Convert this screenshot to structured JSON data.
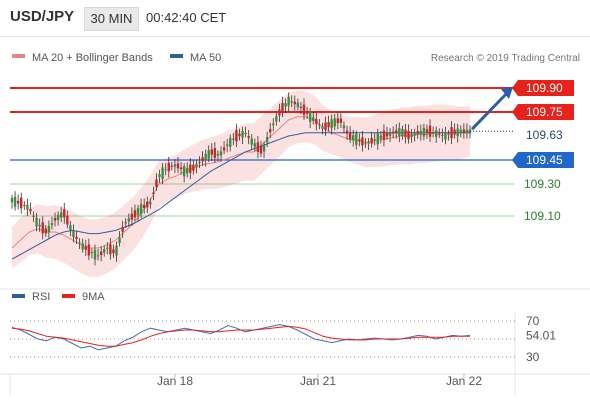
{
  "header": {
    "symbol": "USD/JPY",
    "timeframe": "30 MIN",
    "time": "00:42:40 CET"
  },
  "chart_data": [
    {
      "type": "line",
      "title": "",
      "credit": "Research © 2019 Trading Central",
      "legend": [
        {
          "name": "MA 20 + Bollinger Bands",
          "color": "#f08080"
        },
        {
          "name": "MA 50",
          "color": "#2e5fa3"
        }
      ],
      "legend_placement": "top-left",
      "x_tick_labels": [
        "Jan 18",
        "Jan 21",
        "Jan 22"
      ],
      "ylim": [
        108.7,
        110.05
      ],
      "resistance_levels": [
        {
          "label": "109.90",
          "value": 109.9,
          "color": "#e8211b",
          "style": "box"
        },
        {
          "label": "109.75",
          "value": 109.75,
          "color": "#e8211b",
          "style": "box"
        },
        {
          "label": "109.45",
          "value": 109.45,
          "color": "#2166c9",
          "style": "box"
        }
      ],
      "support_levels": [
        {
          "label": "109.30",
          "value": 109.3,
          "color": "#2e9e3a",
          "style": "text"
        },
        {
          "label": "109.10",
          "value": 109.1,
          "color": "#2e9e3a",
          "style": "text"
        }
      ],
      "last_price": {
        "label": "109.63",
        "value": 109.63
      },
      "series": [
        {
          "name": "Price",
          "values": [
            109.2,
            109.18,
            109.15,
            109.05,
            109.0,
            109.08,
            109.12,
            109.0,
            108.92,
            108.88,
            108.85,
            108.9,
            108.87,
            109.05,
            109.1,
            109.15,
            109.18,
            109.35,
            109.4,
            109.42,
            109.38,
            109.4,
            109.45,
            109.5,
            109.48,
            109.55,
            109.6,
            109.62,
            109.55,
            109.5,
            109.65,
            109.75,
            109.82,
            109.8,
            109.75,
            109.7,
            109.65,
            109.68,
            109.7,
            109.6,
            109.58,
            109.55,
            109.58,
            109.6,
            109.62,
            109.63,
            109.6,
            109.62,
            109.63,
            109.62,
            109.6,
            109.62,
            109.63,
            109.63
          ]
        },
        {
          "name": "MA 20",
          "values": [
            108.9,
            108.95,
            109.0,
            109.02,
            109.0,
            109.0,
            108.98,
            108.95,
            108.92,
            108.9,
            108.9,
            108.92,
            108.95,
            109.0,
            109.05,
            109.12,
            109.2,
            109.3,
            109.33,
            109.35,
            109.38,
            109.4,
            109.42,
            109.43,
            109.44,
            109.46,
            109.48,
            109.5,
            109.5,
            109.55,
            109.6,
            109.65,
            109.7,
            109.72,
            109.72,
            109.7,
            109.65,
            109.62,
            109.6,
            109.58,
            109.57,
            109.56,
            109.57,
            109.58,
            109.59,
            109.6,
            109.6,
            109.61,
            109.61,
            109.62,
            109.62,
            109.62,
            109.62,
            109.63
          ]
        },
        {
          "name": "MA 50",
          "values": [
            108.83,
            108.86,
            108.89,
            108.92,
            108.95,
            108.98,
            109.0,
            109.01,
            109.0,
            108.99,
            108.99,
            109.0,
            109.01,
            109.03,
            109.05,
            109.08,
            109.11,
            109.14,
            109.18,
            109.22,
            109.26,
            109.3,
            109.34,
            109.38,
            109.41,
            109.44,
            109.47,
            109.5,
            109.52,
            109.54,
            109.56,
            109.58,
            109.6,
            109.61,
            109.62,
            109.62,
            109.62,
            109.62,
            109.62,
            109.62,
            109.62,
            109.62,
            109.62,
            109.62,
            109.62,
            109.62,
            109.62,
            109.62,
            109.62,
            109.62,
            109.62,
            109.62,
            109.62,
            109.62
          ]
        }
      ]
    },
    {
      "type": "line",
      "title": "",
      "legend": [
        {
          "name": "RSI",
          "color": "#2e5fa3"
        },
        {
          "name": "9MA",
          "color": "#e8211b"
        }
      ],
      "ylim": [
        20,
        80
      ],
      "y_tick_labels": [
        "70",
        "30"
      ],
      "current_value": {
        "label": "54.01",
        "value": 54.01
      },
      "series": [
        {
          "name": "RSI",
          "values": [
            63,
            60,
            55,
            50,
            48,
            52,
            50,
            45,
            40,
            42,
            38,
            40,
            42,
            48,
            52,
            58,
            62,
            60,
            58,
            60,
            62,
            60,
            58,
            56,
            60,
            65,
            62,
            58,
            60,
            62,
            64,
            66,
            64,
            60,
            55,
            50,
            48,
            46,
            48,
            50,
            49,
            50,
            51,
            50,
            49,
            50,
            52,
            54,
            53,
            50,
            52,
            54,
            53,
            54
          ]
        },
        {
          "name": "9MA",
          "values": [
            62,
            61,
            59,
            56,
            53,
            52,
            51,
            49,
            47,
            45,
            43,
            42,
            42,
            44,
            46,
            49,
            53,
            56,
            58,
            59,
            60,
            60,
            59,
            58,
            58,
            59,
            60,
            60,
            60,
            61,
            62,
            63,
            64,
            63,
            61,
            57,
            53,
            51,
            50,
            49,
            49,
            49,
            50,
            50,
            50,
            50,
            51,
            52,
            52,
            52,
            52,
            53,
            53,
            53
          ]
        }
      ]
    }
  ]
}
